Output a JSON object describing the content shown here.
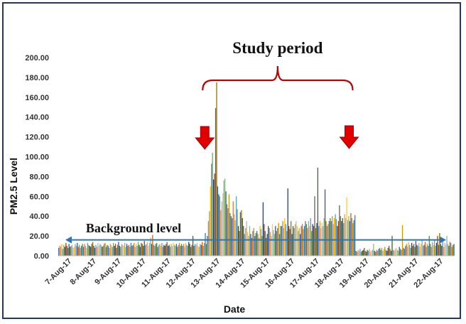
{
  "chart_data": {
    "type": "bar",
    "title": "",
    "xlabel": "Date",
    "ylabel": "PM2.5 Level",
    "ylim": [
      0,
      200
    ],
    "yticks": [
      "0.00",
      "20.00",
      "40.00",
      "60.00",
      "80.00",
      "100.00",
      "120.00",
      "140.00",
      "160.00",
      "180.00",
      "200.00"
    ],
    "categories": [
      "7-Aug-17",
      "8-Aug-17",
      "9-Aug-17",
      "10-Aug-17",
      "11-Aug-17",
      "12-Aug-17",
      "13-Aug-17",
      "14-Aug-17",
      "15-Aug-17",
      "16-Aug-17",
      "17-Aug-17",
      "18-Aug-17",
      "19-Aug-17",
      "20-Aug-17",
      "21-Aug-17",
      "22-Aug-17"
    ],
    "bars_per_day": 24,
    "series_colors": [
      "#4472c4",
      "#ed7d31",
      "#a5a5a5",
      "#ffc000",
      "#5b9bd5",
      "#70ad47",
      "#264478",
      "#9e480e",
      "#636363",
      "#997300",
      "#255e91",
      "#43682b",
      "#698ed0",
      "#f1975a",
      "#b7b7b7",
      "#ffcd33",
      "#7cafdd",
      "#8cc168",
      "#335aa1",
      "#d26012",
      "#848484",
      "#cc9a00",
      "#327dc2",
      "#5a8a39"
    ],
    "daily_values": [
      [
        8,
        10,
        9,
        12,
        7,
        11,
        9,
        13,
        10,
        8,
        12,
        9,
        10,
        11,
        8,
        9,
        12,
        10,
        13,
        9,
        11,
        8,
        10,
        12
      ],
      [
        9,
        12,
        10,
        8,
        13,
        11,
        10,
        9,
        12,
        14,
        10,
        8,
        11,
        9,
        13,
        10,
        12,
        11,
        9,
        10,
        12,
        13,
        9,
        11
      ],
      [
        10,
        8,
        12,
        11,
        9,
        13,
        10,
        12,
        8,
        11,
        14,
        10,
        9,
        12,
        11,
        10,
        13,
        9,
        12,
        10,
        11,
        9,
        13,
        10
      ],
      [
        11,
        13,
        9,
        12,
        10,
        14,
        11,
        9,
        13,
        12,
        10,
        15,
        11,
        12,
        14,
        10,
        13,
        18,
        12,
        21,
        11,
        10,
        12,
        13
      ],
      [
        9,
        11,
        12,
        10,
        13,
        9,
        11,
        10,
        12,
        14,
        10,
        11,
        9,
        12,
        10,
        13,
        11,
        10,
        12,
        9,
        11,
        13,
        10,
        12
      ],
      [
        10,
        12,
        9,
        13,
        11,
        10,
        14,
        12,
        9,
        11,
        20,
        10,
        12,
        11,
        13,
        10,
        9,
        12,
        11,
        14,
        10,
        13,
        23,
        12
      ],
      [
        20,
        35,
        45,
        70,
        93,
        104,
        77,
        83,
        149,
        175,
        70,
        62,
        60,
        46,
        55,
        63,
        76,
        78,
        65,
        52,
        48,
        62,
        43,
        40
      ],
      [
        38,
        55,
        42,
        36,
        60,
        47,
        30,
        25,
        44,
        46,
        38,
        30,
        22,
        28,
        35,
        24,
        20,
        30,
        22,
        18,
        25,
        28,
        20,
        23
      ],
      [
        25,
        22,
        18,
        30,
        27,
        20,
        54,
        32,
        25,
        18,
        22,
        30,
        28,
        24,
        20,
        32,
        26,
        22,
        30,
        25,
        28,
        33,
        22,
        30
      ],
      [
        30,
        35,
        28,
        38,
        32,
        25,
        68,
        30,
        27,
        35,
        22,
        30,
        28,
        32,
        35,
        30,
        25,
        28,
        22,
        30,
        32,
        27,
        30,
        35
      ],
      [
        32,
        28,
        35,
        30,
        38,
        25,
        32,
        30,
        60,
        28,
        33,
        89,
        30,
        35,
        28,
        33,
        30,
        38,
        67,
        35,
        30,
        32,
        35,
        38
      ],
      [
        35,
        40,
        32,
        38,
        42,
        37,
        30,
        35,
        51,
        40,
        35,
        38,
        33,
        42,
        38,
        59,
        36,
        40,
        35,
        43,
        38,
        33,
        36,
        41
      ],
      [
        5,
        4,
        6,
        5,
        7,
        4,
        5,
        6,
        8,
        5,
        4,
        6,
        5,
        7,
        4,
        5,
        6,
        12,
        5,
        4,
        6,
        5,
        7,
        8
      ],
      [
        6,
        8,
        5,
        7,
        9,
        6,
        5,
        8,
        10,
        7,
        5,
        20,
        6,
        5,
        7,
        8,
        6,
        5,
        9,
        7,
        6,
        31,
        8,
        7
      ],
      [
        10,
        12,
        9,
        14,
        11,
        8,
        13,
        10,
        12,
        9,
        15,
        11,
        10,
        13,
        9,
        12,
        16,
        10,
        11,
        14,
        9,
        12,
        10,
        20
      ],
      [
        12,
        9,
        14,
        11,
        16,
        10,
        13,
        20,
        11,
        23,
        12,
        10,
        14,
        9,
        13,
        11,
        20,
        12,
        10,
        14,
        13,
        9,
        11,
        12
      ]
    ]
  },
  "annotations": {
    "study_period": "Study period",
    "background_level": "Background level",
    "background_value": 16,
    "study_start_category": "13-Aug-17",
    "study_end_category": "18-Aug-17"
  }
}
